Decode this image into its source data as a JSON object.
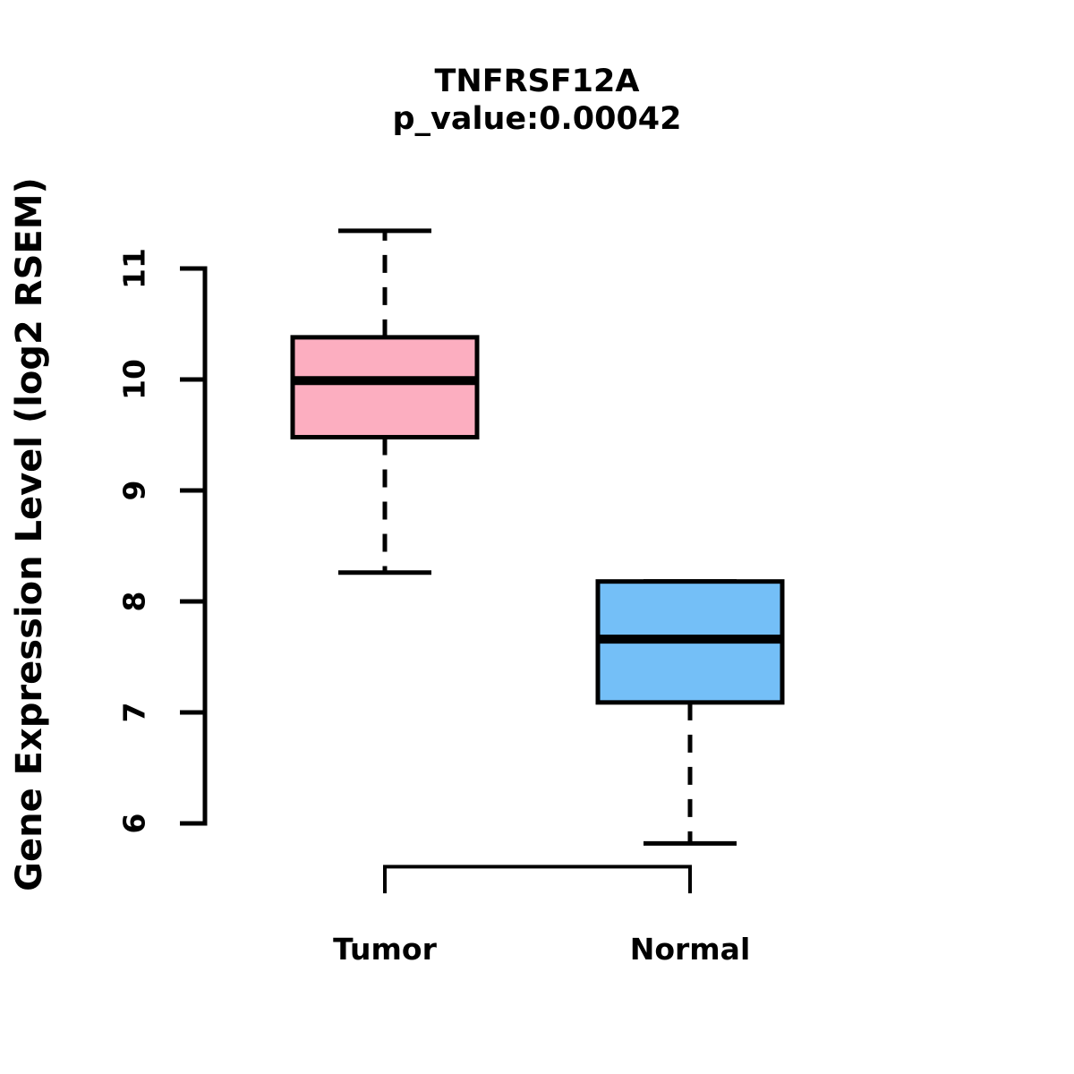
{
  "chart_data": {
    "type": "boxplot",
    "title": "TNFRSF12A",
    "subtitle": "p_value:0.00042",
    "ylabel": "Gene Expression Level (log2 RSEM)",
    "ylim": [
      6,
      11
    ],
    "yticks": [
      6,
      7,
      8,
      9,
      10,
      11
    ],
    "categories": [
      "Tumor",
      "Normal"
    ],
    "series": [
      {
        "name": "Tumor",
        "color": "#FCAEC0",
        "stats": {
          "lower_whisker": 8.26,
          "q1": 9.48,
          "median": 9.99,
          "q3": 10.38,
          "upper_whisker": 11.34
        }
      },
      {
        "name": "Normal",
        "color": "#74BFF7",
        "stats": {
          "lower_whisker": 5.82,
          "q1": 7.09,
          "median": 7.66,
          "q3": 8.18,
          "upper_whisker": 8.18
        }
      }
    ],
    "annotations": [
      {
        "type": "comparison-bracket",
        "from": "Tumor",
        "to": "Normal",
        "at_value": 5.61,
        "tick_drop": 0.24
      }
    ],
    "colors": {
      "stroke": "#000000",
      "background": "#FFFFFF"
    },
    "legend": "none",
    "grid": false
  }
}
